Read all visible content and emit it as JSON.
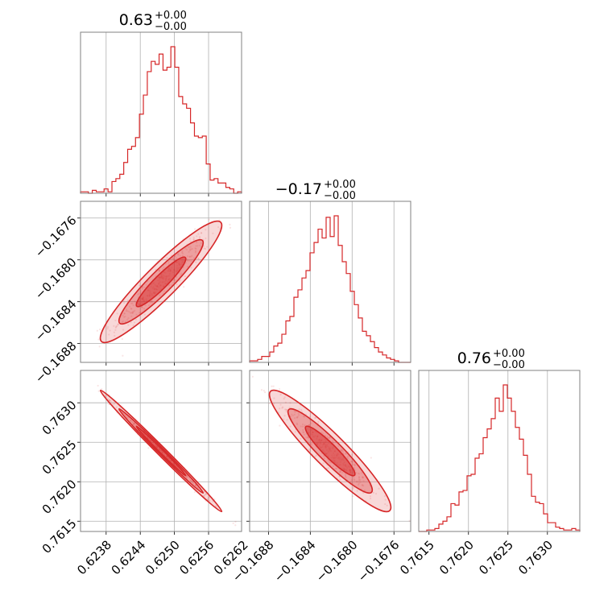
{
  "colors": {
    "accent": "#d62728",
    "grid": "#b0b0b0",
    "frame": "#808080"
  },
  "chart_data": {
    "type": "corner",
    "parameters": [
      {
        "title": "0.63",
        "title_upper": "+0.00",
        "title_lower": "−0.00",
        "range": [
          0.62335,
          0.62618
        ],
        "ticks": [
          0.6238,
          0.6244,
          0.625,
          0.6256,
          0.6262
        ],
        "tick_labels": [
          "0.6238",
          "0.6244",
          "0.6250",
          "0.6256",
          "0.6262"
        ]
      },
      {
        "title": "−0.17",
        "title_upper": "+0.00",
        "title_lower": "−0.00",
        "range": [
          -0.16898,
          -0.16744
        ],
        "ticks": [
          -0.1688,
          -0.1684,
          -0.168,
          -0.1676
        ],
        "tick_labels": [
          "−0.1688",
          "−0.1684",
          "−0.1680",
          "−0.1676"
        ]
      },
      {
        "title": "0.76",
        "title_upper": "+0.00",
        "title_lower": "−0.00",
        "range": [
          0.76137,
          0.76341
        ],
        "ticks": [
          0.7615,
          0.762,
          0.7625,
          0.763
        ],
        "tick_labels": [
          "0.7615",
          "0.7620",
          "0.7625",
          "0.7630"
        ]
      }
    ],
    "histograms": [
      [
        1,
        1,
        0,
        2,
        1,
        1,
        3,
        1,
        8,
        10,
        13,
        21,
        30,
        32,
        38,
        54,
        67,
        83,
        90,
        88,
        95,
        84,
        86,
        100,
        86,
        66,
        61,
        58,
        48,
        39,
        38,
        39,
        20,
        9,
        10,
        7,
        7,
        4,
        3,
        0,
        1
      ],
      [
        1,
        1,
        2,
        4,
        4,
        7,
        11,
        13,
        19,
        28,
        31,
        44,
        49,
        57,
        62,
        74,
        81,
        90,
        84,
        98,
        85,
        99,
        79,
        68,
        60,
        48,
        39,
        30,
        21,
        18,
        14,
        10,
        7,
        5,
        3,
        2,
        1,
        0,
        0,
        0
      ],
      [
        0,
        0,
        1,
        1,
        2,
        5,
        7,
        10,
        19,
        18,
        27,
        28,
        38,
        39,
        50,
        53,
        64,
        70,
        77,
        91,
        82,
        100,
        91,
        82,
        71,
        63,
        52,
        39,
        24,
        20,
        19,
        12,
        6,
        6,
        3,
        2,
        1,
        1,
        2,
        1
      ]
    ],
    "correlations": [
      {
        "pair": [
          0,
          1
        ],
        "rho": 0.93
      },
      {
        "pair": [
          0,
          2
        ],
        "rho": -0.995
      },
      {
        "pair": [
          1,
          2
        ],
        "rho": -0.93
      }
    ],
    "grid": true
  }
}
